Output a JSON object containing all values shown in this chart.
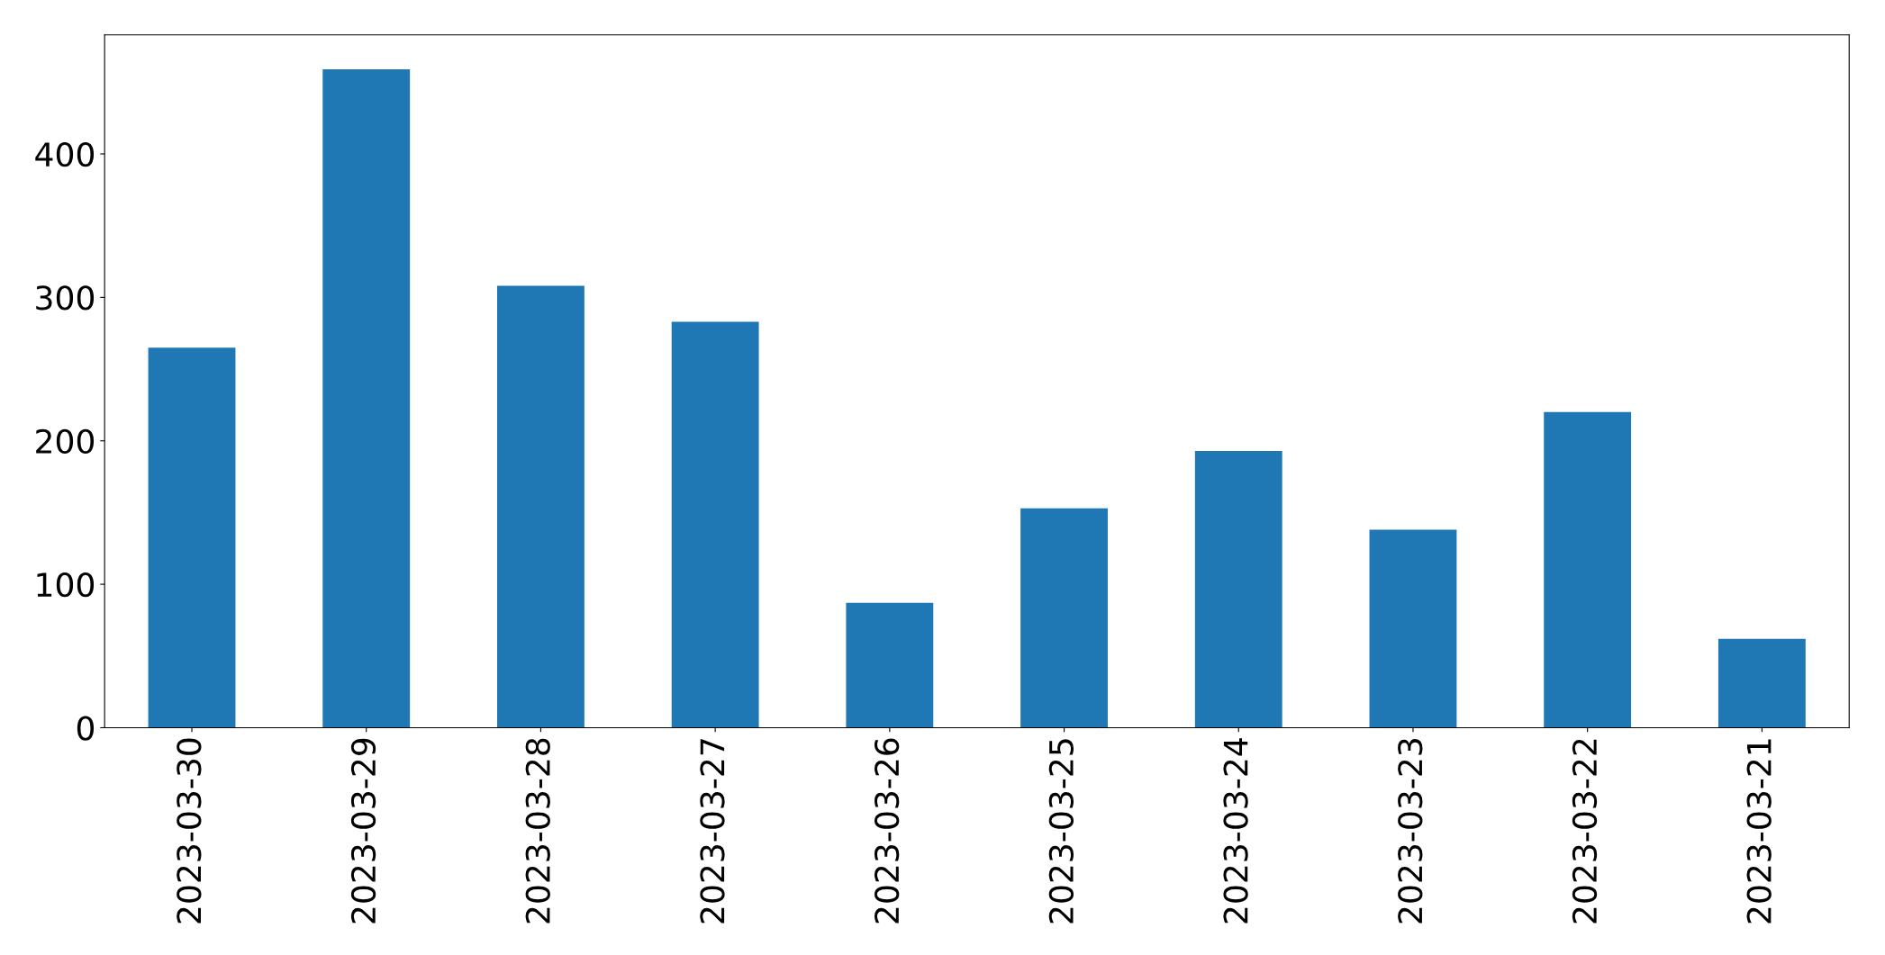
{
  "chart_data": {
    "type": "bar",
    "categories": [
      "2023-03-30",
      "2023-03-29",
      "2023-03-28",
      "2023-03-27",
      "2023-03-26",
      "2023-03-25",
      "2023-03-24",
      "2023-03-23",
      "2023-03-22",
      "2023-03-21"
    ],
    "values": [
      265,
      459,
      308,
      283,
      87,
      153,
      193,
      138,
      220,
      62
    ],
    "color": "#1f77b4",
    "ylim": [
      0,
      483
    ],
    "yticks": [
      0,
      100,
      200,
      300,
      400
    ],
    "grid": false
  }
}
